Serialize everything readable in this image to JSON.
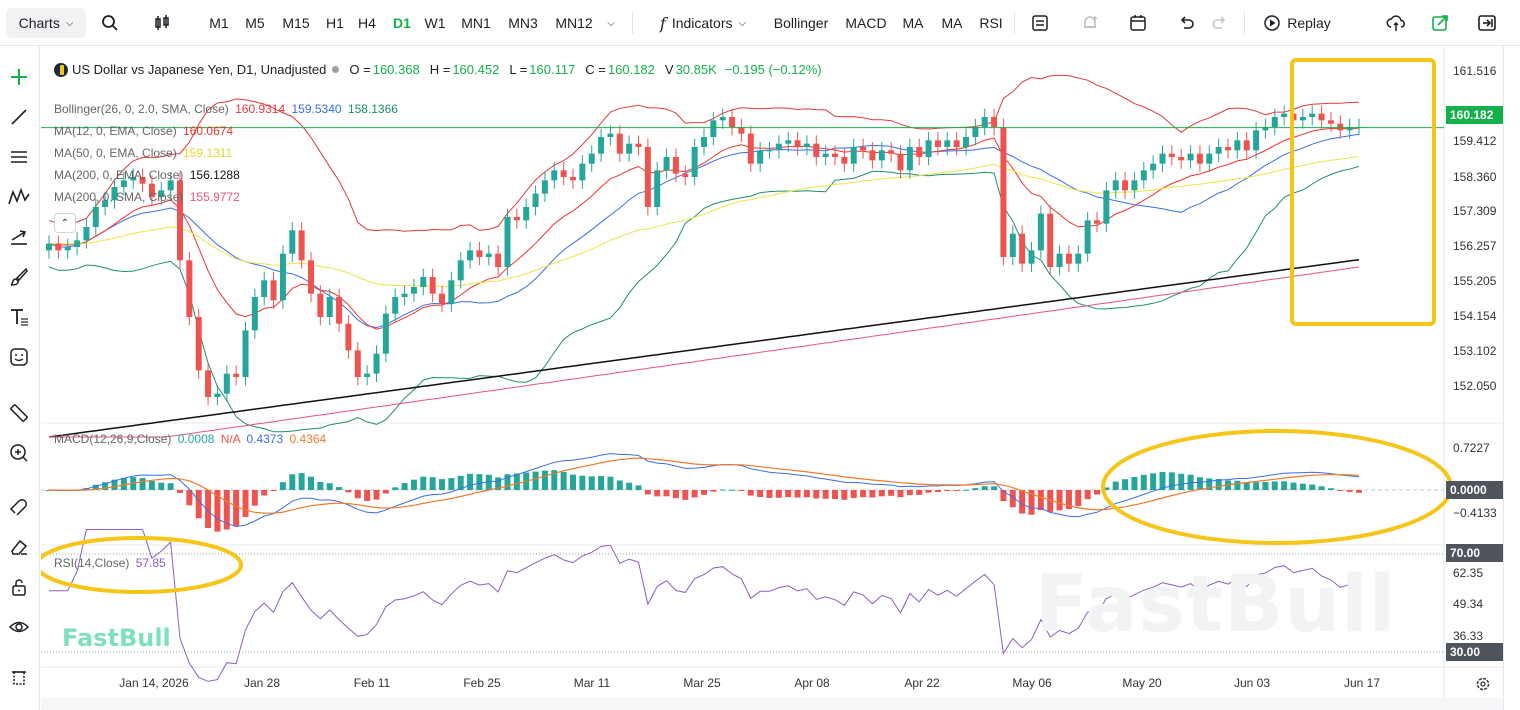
{
  "toolbar": {
    "charts_label": "Charts",
    "timeframes": [
      "M1",
      "M5",
      "M15",
      "H1",
      "H4",
      "D1",
      "W1",
      "MN1",
      "MN3",
      "MN12"
    ],
    "active_timeframe": "D1",
    "indicators_label": "Indicators",
    "indicator_shortcuts": [
      "Bollinger",
      "MACD",
      "MA",
      "MA",
      "RSI"
    ],
    "replay_label": "Replay"
  },
  "header": {
    "symbol_title": "US Dollar vs Japanese Yen, D1, Unadjusted",
    "o_label": "O =",
    "o_value": "160.368",
    "h_label": "H =",
    "h_value": "160.452",
    "l_label": "L =",
    "l_value": "160.117",
    "c_label": "C =",
    "c_value": "160.182",
    "v_label": "V",
    "v_value": "30.85K",
    "change": "−0.195 (−0.12%)"
  },
  "legends": {
    "bollinger": {
      "label": "Bollinger(26, 0, 2.0, SMA, Close)",
      "v1": "160.9314",
      "v2": "159.5340",
      "v3": "158.1366"
    },
    "ma1": {
      "label": "MA(12, 0, EMA, Close)",
      "v": "160.0674"
    },
    "ma2": {
      "label": "MA(50, 0, EMA, Close)",
      "v": "159.1311"
    },
    "ma3": {
      "label": "MA(200, 0, EMA, Close)",
      "v": "156.1288"
    },
    "ma4": {
      "label": "MA(200, 0, SMA, Close)",
      "v": "155.9772"
    },
    "macd": {
      "label": "MACD(12,26,9,Close)",
      "v1": "0.0008",
      "v2": "N/A",
      "v3": "0.4373",
      "v4": "0.4364"
    },
    "rsi": {
      "label": "RSI(14,Close)",
      "v": "57.85"
    }
  },
  "price_scale": [
    "161.516",
    "160.182",
    "159.412",
    "158.360",
    "157.309",
    "156.257",
    "155.205",
    "154.154",
    "153.102",
    "152.050"
  ],
  "last_price_tag": "160.182",
  "macd_scale": [
    "0.7227",
    "0.0000",
    "−0.4133"
  ],
  "rsi_scale": [
    "70.00",
    "62.35",
    "49.34",
    "36.33",
    "30.00"
  ],
  "x_labels": [
    "Jan 14, 2026",
    "Jan 28",
    "Feb 11",
    "Feb 25",
    "Mar 11",
    "Mar 25",
    "Apr 08",
    "Apr 22",
    "May 06",
    "May 20",
    "Jun 03",
    "Jun 17"
  ],
  "watermark": "FastBull",
  "brand": "FastBull",
  "colors": {
    "up": "#26a69a",
    "down": "#ef5350",
    "accent": "#14b14a",
    "highlight": "#f5c518",
    "ma12": "#f0342b",
    "ma50": "#f1e34a",
    "ema200": "#111111",
    "sma200": "#e8557a",
    "bb_upper": "#e03b3b",
    "bb_mid": "#3a6ee8",
    "bb_lower": "#1f8f6b"
  },
  "chart_data": {
    "type": "candlestick",
    "title": "US Dollar vs Japanese Yen, D1, Unadjusted",
    "x_range": [
      "Jan 14, 2026",
      "Jun 17"
    ],
    "y_range": [
      151.5,
      162.0
    ],
    "grid": false,
    "closes": [
      156.7,
      156.5,
      156.6,
      156.8,
      157.2,
      157.8,
      158.0,
      158.4,
      158.6,
      158.7,
      158.5,
      158.1,
      158.3,
      158.6,
      156.2,
      154.5,
      152.9,
      152.1,
      152.2,
      152.8,
      152.7,
      154.1,
      155.1,
      155.6,
      155.0,
      156.4,
      157.1,
      156.2,
      155.2,
      154.5,
      155.1,
      154.3,
      153.5,
      152.7,
      152.8,
      153.4,
      154.6,
      155.1,
      155.2,
      155.4,
      155.7,
      155.2,
      154.9,
      155.6,
      156.2,
      156.5,
      156.3,
      156.4,
      156.0,
      157.5,
      157.4,
      157.8,
      158.2,
      158.6,
      158.9,
      158.7,
      158.6,
      159.1,
      159.4,
      159.9,
      160.0,
      159.4,
      159.7,
      159.6,
      157.8,
      158.9,
      159.3,
      158.8,
      158.7,
      159.6,
      159.9,
      160.4,
      160.5,
      160.2,
      160.0,
      159.1,
      159.5,
      159.5,
      159.7,
      159.8,
      159.6,
      159.7,
      159.3,
      159.4,
      159.3,
      159.1,
      159.6,
      159.5,
      159.2,
      159.5,
      159.4,
      158.9,
      159.6,
      159.3,
      159.8,
      159.6,
      159.8,
      159.6,
      159.9,
      160.2,
      160.5,
      160.2,
      156.3,
      157.0,
      156.1,
      156.5,
      157.6,
      156.0,
      156.4,
      156.1,
      156.4,
      157.4,
      157.3,
      158.3,
      158.6,
      158.3,
      158.6,
      158.9,
      159.1,
      159.4,
      159.3,
      159.2,
      159.4,
      159.1,
      159.4,
      159.6,
      159.5,
      159.8,
      159.5,
      160.1,
      160.2,
      160.5,
      160.6,
      160.4,
      160.5,
      160.6,
      160.4,
      160.3,
      160.1,
      160.2,
      160.2
    ]
  }
}
